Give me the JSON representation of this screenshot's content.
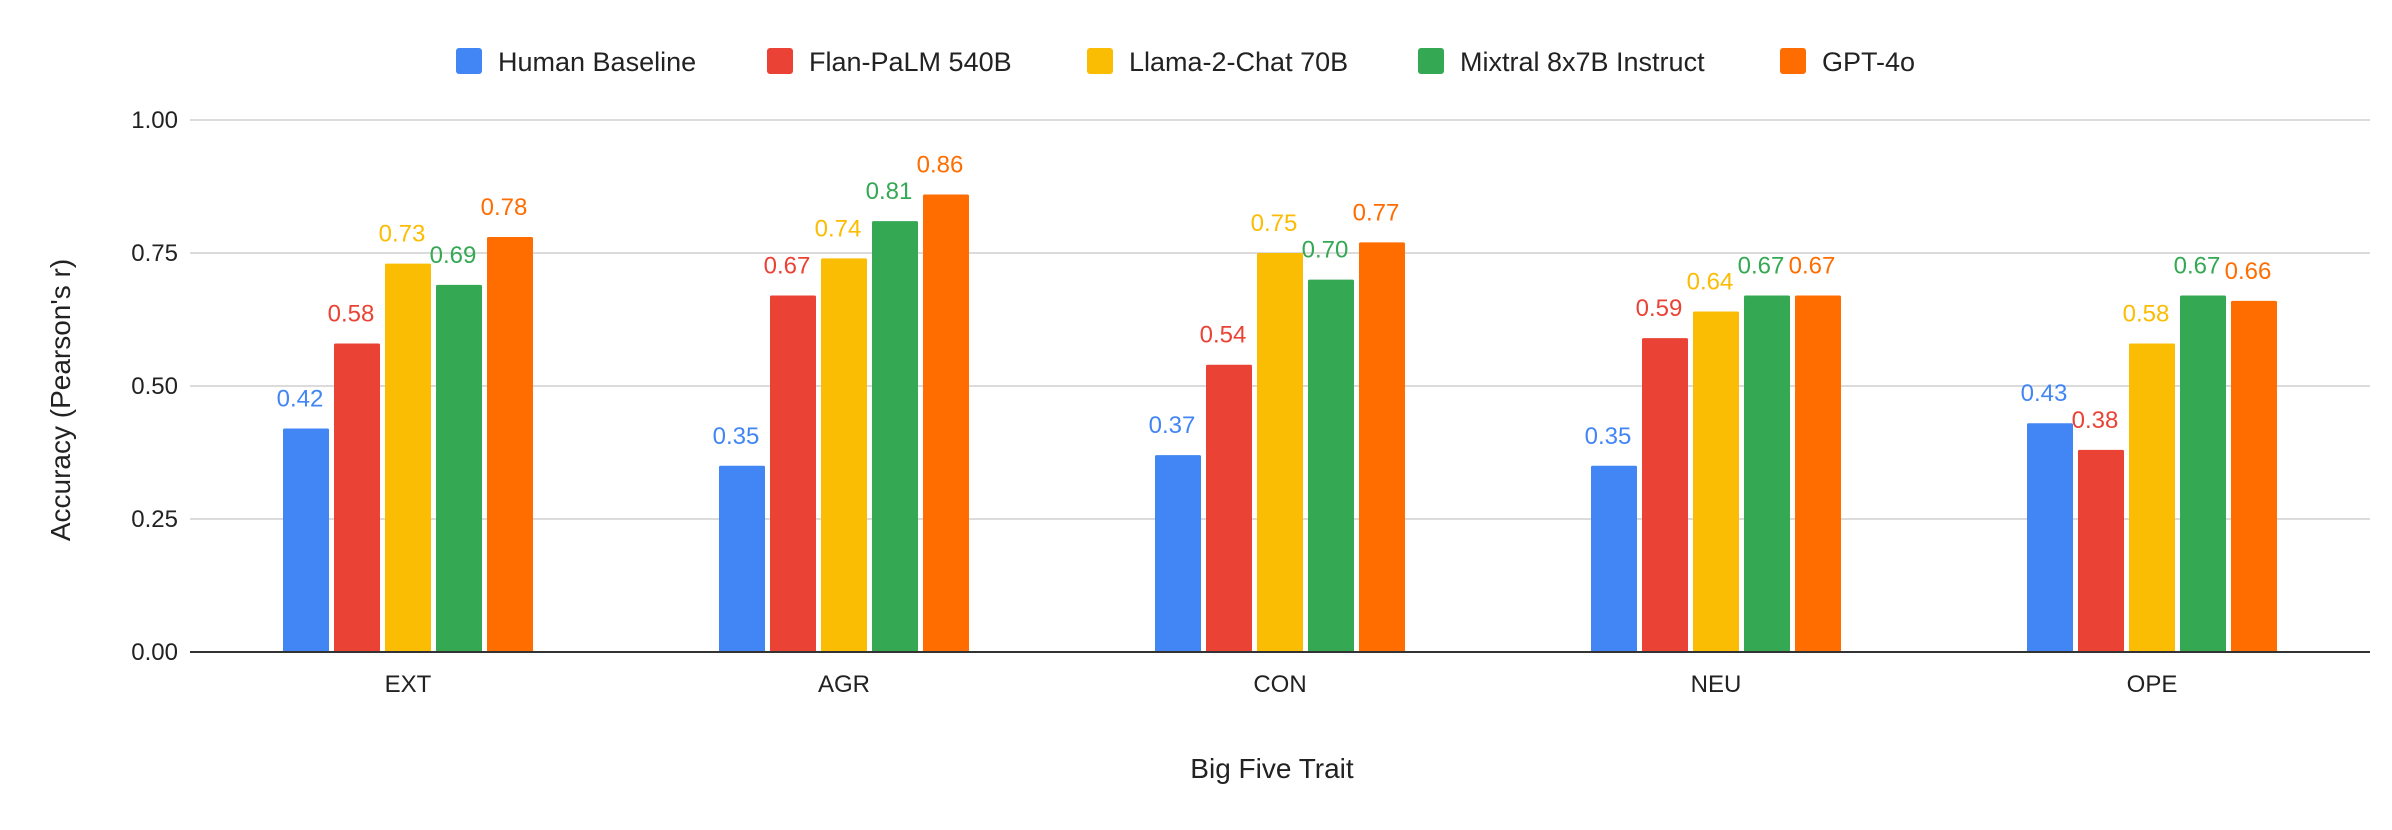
{
  "chart_data": {
    "type": "bar",
    "title": "",
    "xlabel": "Big Five Trait",
    "ylabel": "Accuracy (Pearson's r)",
    "ylim": [
      0,
      1
    ],
    "yticks": [
      0,
      0.25,
      0.5,
      0.75,
      1
    ],
    "ytick_labels": [
      "0.00",
      "0.25",
      "0.50",
      "0.75",
      "1.00"
    ],
    "categories": [
      "EXT",
      "AGR",
      "CON",
      "NEU",
      "OPE"
    ],
    "series": [
      {
        "name": "Human Baseline",
        "color": "#4285F4",
        "values": [
          0.42,
          0.35,
          0.37,
          0.35,
          0.43
        ],
        "labels": [
          "0.42",
          "0.35",
          "0.37",
          "0.35",
          "0.43"
        ]
      },
      {
        "name": "Flan-PaLM 540B",
        "color": "#EA4335",
        "values": [
          0.58,
          0.67,
          0.54,
          0.59,
          0.38
        ],
        "labels": [
          "0.58",
          "0.67",
          "0.54",
          "0.59",
          "0.38"
        ]
      },
      {
        "name": "Llama-2-Chat 70B",
        "color": "#FBBC04",
        "values": [
          0.73,
          0.74,
          0.75,
          0.64,
          0.58
        ],
        "labels": [
          "0.73",
          "0.74",
          "0.75",
          "0.64",
          "0.58"
        ]
      },
      {
        "name": "Mixtral 8x7B Instruct",
        "color": "#34A853",
        "values": [
          0.69,
          0.81,
          0.7,
          0.67,
          0.67
        ],
        "labels": [
          "0.69",
          "0.81",
          "0.70",
          "0.67",
          "0.67"
        ]
      },
      {
        "name": "GPT-4o",
        "color": "#FF6D01",
        "values": [
          0.78,
          0.86,
          0.77,
          0.67,
          0.66
        ],
        "labels": [
          "0.78",
          "0.86",
          "0.77",
          "0.67",
          "0.66"
        ]
      }
    ],
    "legend_position": "top",
    "grid": true
  }
}
